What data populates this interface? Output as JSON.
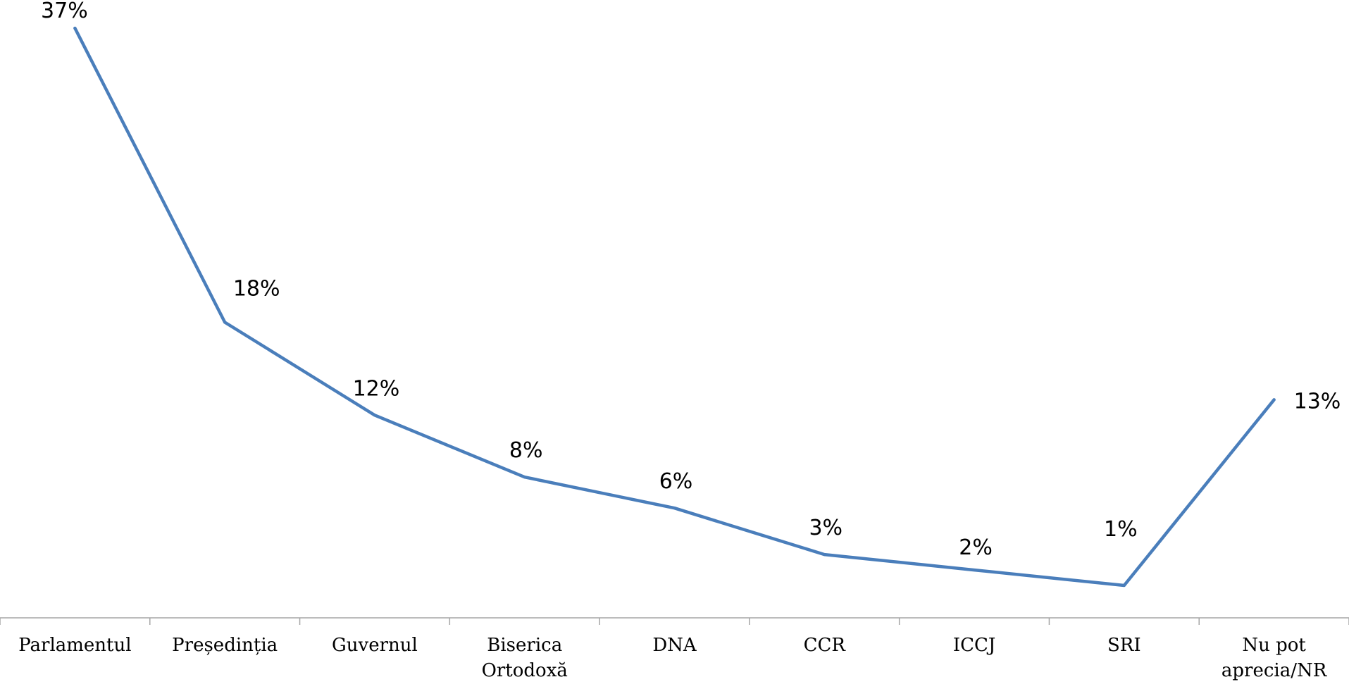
{
  "chart_data": {
    "type": "line",
    "categories": [
      [
        "Parlamentul"
      ],
      [
        "Președinția"
      ],
      [
        "Guvernul"
      ],
      [
        "Biserica",
        "Ortodoxă"
      ],
      [
        "DNA"
      ],
      [
        "CCR"
      ],
      [
        "ICCJ"
      ],
      [
        "SRI"
      ],
      [
        "Nu pot",
        "aprecia/NR"
      ]
    ],
    "series": [
      {
        "values": [
          37,
          18,
          12,
          8,
          6,
          3,
          2,
          1,
          13
        ],
        "color": "#4a7ebb",
        "data_labels": [
          "37%",
          "18%",
          "12%",
          "8%",
          "6%",
          "3%",
          "2%",
          "1%",
          "13%"
        ]
      }
    ],
    "ylim": [
      0,
      38
    ],
    "grid": false,
    "legend": false,
    "axis_color": "#a6a6a6"
  }
}
